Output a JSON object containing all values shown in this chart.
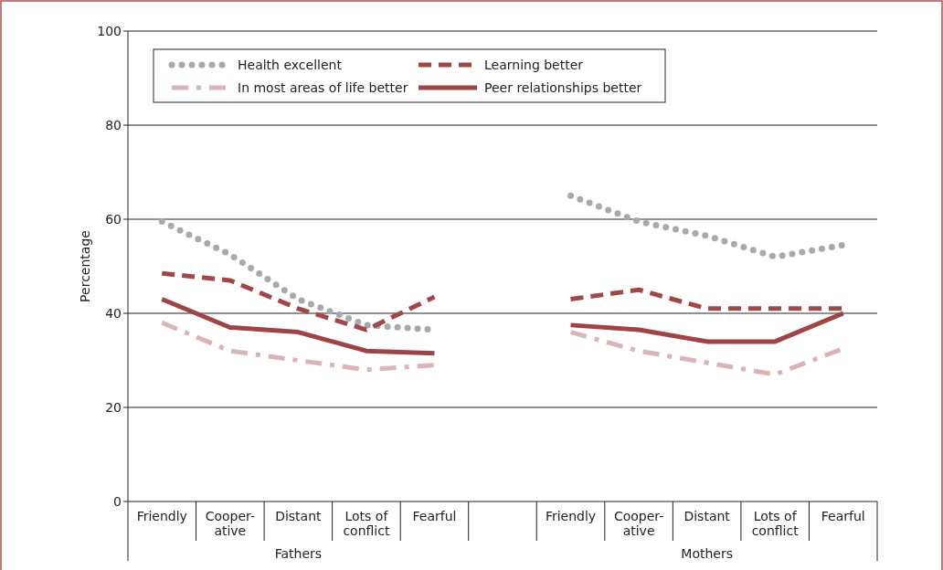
{
  "chart_data": {
    "type": "line",
    "ylabel": "Percentage",
    "categories": [
      "Friendly",
      "Cooper-\native",
      "Distant",
      "Lots of\nconflict",
      "Fearful",
      null,
      "Friendly",
      "Cooper-\native",
      "Distant",
      "Lots of\nconflict",
      "Fearful"
    ],
    "annotations": [
      "Fathers",
      "Mothers"
    ],
    "series": [
      {
        "name": "Health excellent",
        "color": "#a7a9ac",
        "line_style": "dotted",
        "values": [
          59.5,
          52.5,
          43,
          37.5,
          36.5,
          null,
          65,
          59.5,
          56.5,
          52,
          54.5
        ]
      },
      {
        "name": "Learning better",
        "color": "#a04848",
        "line_style": "dashed",
        "values": [
          48.5,
          47,
          41,
          36.5,
          43.5,
          null,
          43,
          45,
          41,
          41,
          41
        ]
      },
      {
        "name": "In most areas of life better",
        "color": "#dbb5b5",
        "line_style": "dashdot",
        "values": [
          38,
          32,
          30,
          28,
          29,
          null,
          36,
          32,
          29.5,
          27,
          32.5
        ]
      },
      {
        "name": "Peer relationships better",
        "color": "#9e4444",
        "line_style": "solid",
        "values": [
          43,
          37,
          36,
          32,
          31.5,
          null,
          37.5,
          36.5,
          34,
          34,
          40
        ]
      }
    ],
    "ylim": [
      0,
      100
    ],
    "yticks": [
      0,
      20,
      40,
      60,
      80,
      100
    ],
    "grid": "y",
    "legend": "top left"
  }
}
